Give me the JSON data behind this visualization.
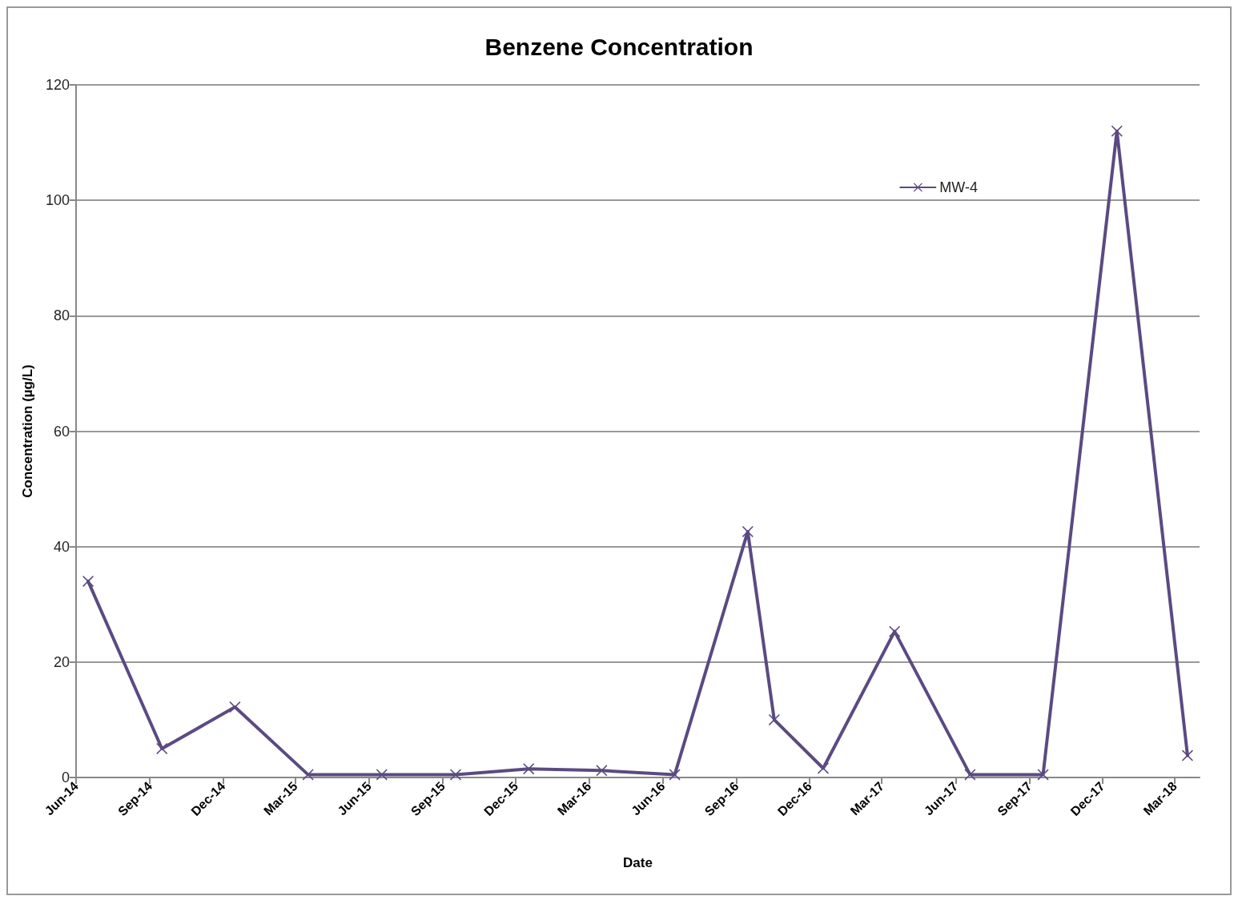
{
  "chart_data": {
    "type": "line",
    "title": "Benzene Concentration",
    "xlabel": "Date",
    "ylabel": "Concentration (µg/L)",
    "x": [
      "2014-06-16",
      "2014-09-16",
      "2014-12-16",
      "2015-03-17",
      "2015-06-17",
      "2015-09-17",
      "2015-12-17",
      "2016-03-17",
      "2016-06-16",
      "2016-09-15",
      "2016-10-18",
      "2016-12-18",
      "2017-03-17",
      "2017-06-19",
      "2017-09-18",
      "2017-12-19",
      "2018-03-17"
    ],
    "series": [
      {
        "name": "MW-4",
        "color": "#5b4a82",
        "values": [
          34,
          5,
          12.2,
          0.5,
          0.5,
          0.5,
          1.5,
          1.2,
          0.5,
          42.6,
          10,
          1.6,
          25.3,
          0.5,
          0.5,
          112,
          3.8
        ]
      }
    ],
    "xlim": [
      "2014-06-01",
      "2018-04-01"
    ],
    "xticks": [
      {
        "value": "2014-06-01",
        "label": "Jun-14"
      },
      {
        "value": "2014-09-01",
        "label": "Sep-14"
      },
      {
        "value": "2014-12-01",
        "label": "Dec-14"
      },
      {
        "value": "2015-03-01",
        "label": "Mar-15"
      },
      {
        "value": "2015-06-01",
        "label": "Jun-15"
      },
      {
        "value": "2015-09-01",
        "label": "Sep-15"
      },
      {
        "value": "2015-12-01",
        "label": "Dec-15"
      },
      {
        "value": "2016-03-01",
        "label": "Mar-16"
      },
      {
        "value": "2016-06-01",
        "label": "Jun-16"
      },
      {
        "value": "2016-09-01",
        "label": "Sep-16"
      },
      {
        "value": "2016-12-01",
        "label": "Dec-16"
      },
      {
        "value": "2017-03-01",
        "label": "Mar-17"
      },
      {
        "value": "2017-06-01",
        "label": "Jun-17"
      },
      {
        "value": "2017-09-01",
        "label": "Sep-17"
      },
      {
        "value": "2017-12-01",
        "label": "Dec-17"
      },
      {
        "value": "2018-03-01",
        "label": "Mar-18"
      }
    ],
    "ylim": [
      0,
      120
    ],
    "yticks": [
      0,
      20,
      40,
      60,
      80,
      100,
      120
    ],
    "grid": "y",
    "legend": "top right",
    "marker": "cross",
    "line_style": "solid"
  }
}
